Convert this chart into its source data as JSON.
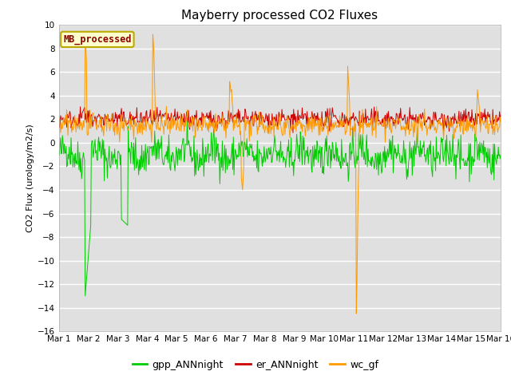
{
  "title": "Mayberry processed CO2 Fluxes",
  "ylabel": "CO2 Flux (urology/m2/s)",
  "ylim": [
    -16,
    10
  ],
  "yticks": [
    -16,
    -14,
    -12,
    -10,
    -8,
    -6,
    -4,
    -2,
    0,
    2,
    4,
    6,
    8,
    10
  ],
  "x_labels": [
    "Mar 1",
    "Mar 2",
    "Mar 3",
    "Mar 4",
    "Mar 5",
    "Mar 6",
    "Mar 7",
    "Mar 8",
    "Mar 9",
    "Mar 10",
    "Mar 11",
    "Mar 12",
    "Mar 13",
    "Mar 14",
    "Mar 15",
    "Mar 16"
  ],
  "legend_box_label": "MB_processed",
  "legend_box_facecolor": "#ffffcc",
  "legend_box_edgecolor": "#bbaa00",
  "legend_box_textcolor": "#8b0000",
  "colors": {
    "gpp_ANNnight": "#00cc00",
    "er_ANNnight": "#cc0000",
    "wc_gf": "#ff9900"
  },
  "plot_bg_color": "#e0e0e0",
  "n_points": 720,
  "seed": 42,
  "title_fontsize": 11,
  "axis_fontsize": 8,
  "tick_fontsize": 7.5
}
